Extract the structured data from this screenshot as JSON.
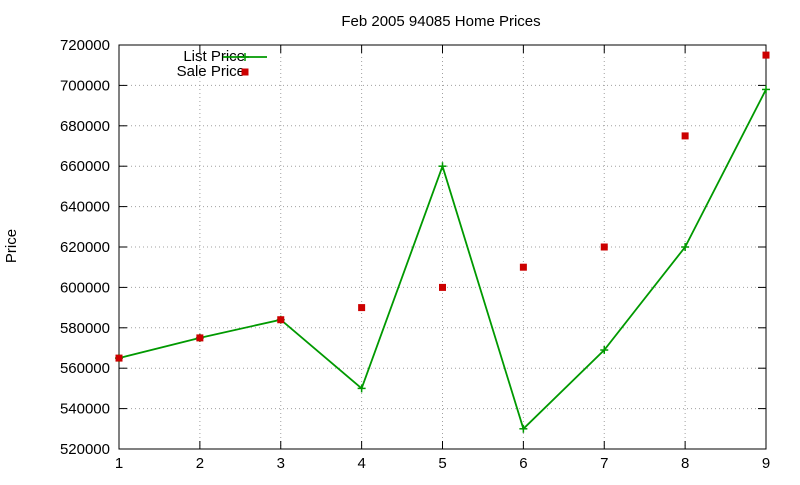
{
  "chart_data": {
    "type": "line",
    "title": "Feb 2005 94085 Home Prices",
    "xlabel": "",
    "ylabel": "Price",
    "x": [
      1,
      2,
      3,
      4,
      5,
      6,
      7,
      8,
      9
    ],
    "xlim": [
      1,
      9
    ],
    "ylim": [
      520000,
      720000
    ],
    "x_ticks": [
      1,
      2,
      3,
      4,
      5,
      6,
      7,
      8,
      9
    ],
    "y_ticks": [
      520000,
      540000,
      560000,
      580000,
      600000,
      620000,
      640000,
      660000,
      680000,
      700000,
      720000
    ],
    "grid": true,
    "legend_position": "top-left",
    "series": [
      {
        "name": "List Price",
        "type": "linespoints",
        "marker": "plus",
        "color": "#009900",
        "values": [
          565000,
          575000,
          584000,
          550000,
          660000,
          530000,
          569000,
          620000,
          698000
        ]
      },
      {
        "name": "Sale Price",
        "type": "points",
        "marker": "square",
        "color": "#cc0000",
        "values": [
          565000,
          575000,
          584000,
          590000,
          600000,
          610000,
          620000,
          675000,
          715000
        ]
      }
    ]
  }
}
